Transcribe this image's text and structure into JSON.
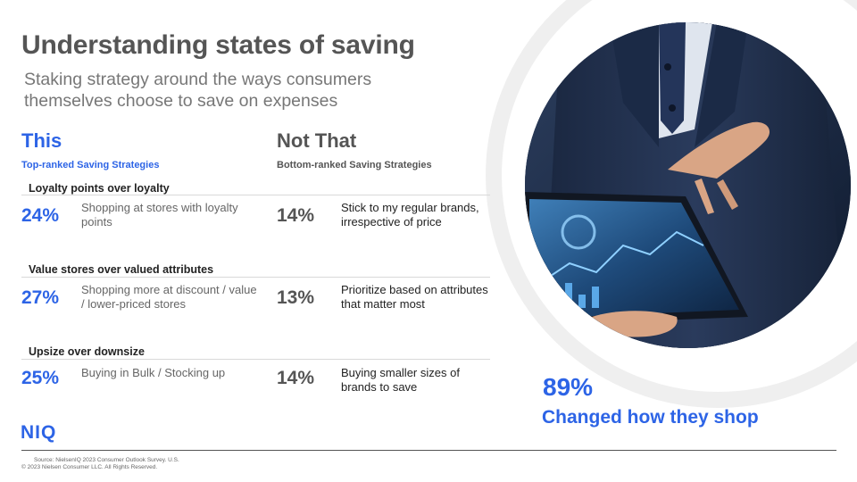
{
  "title": "Understanding states of saving",
  "subtitle": "Staking strategy around the ways consumers themselves choose to save on expenses",
  "columns": {
    "this": {
      "heading": "This",
      "subheading": "Top-ranked Saving Strategies"
    },
    "that": {
      "heading": "Not That",
      "subheading": "Bottom-ranked Saving Strategies"
    }
  },
  "groups": [
    {
      "title": "Loyalty points over loyalty",
      "this": {
        "percent": "24%",
        "text": "Shopping at stores with loyalty points"
      },
      "that": {
        "percent": "14%",
        "text": "Stick to my regular brands, irrespective of price"
      }
    },
    {
      "title": "Value stores over valued attributes",
      "this": {
        "percent": "27%",
        "text": "Shopping more at discount / value / lower-priced stores"
      },
      "that": {
        "percent": "13%",
        "text": "Prioritize based on attributes that matter most"
      }
    },
    {
      "title": "Upsize over downsize",
      "this": {
        "percent": "25%",
        "text": "Buying in Bulk / Stocking up"
      },
      "that": {
        "percent": "14%",
        "text": "Buying smaller sizes of brands to save"
      }
    }
  ],
  "stat": {
    "value": "89%",
    "label": "Changed how they shop"
  },
  "logo": "NIQ",
  "footer": {
    "source": "Source: NielsenIQ 2023 Consumer Outlook Survey. U.S.",
    "copyright": "© 2023 Nielsen Consumer LLC. All Rights Reserved."
  },
  "colors": {
    "accent": "#2d64e6",
    "heading": "#555555",
    "ring": "#efefef"
  },
  "photo": "businessman-holding-tablet-photo"
}
